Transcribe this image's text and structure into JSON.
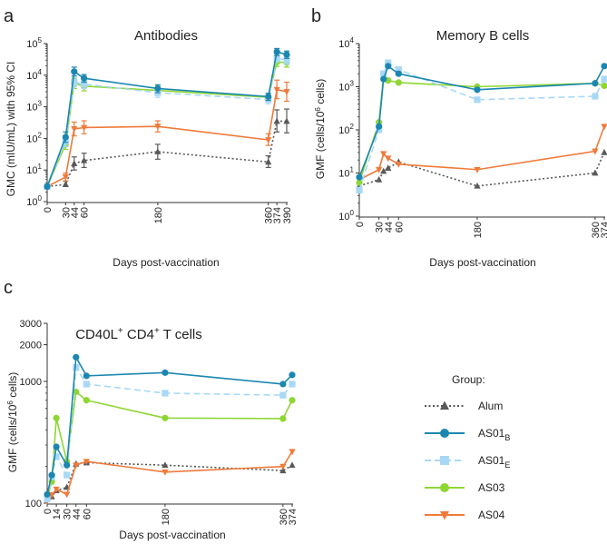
{
  "legend": {
    "title": "Group:",
    "entries": [
      {
        "key": "alum",
        "label": "Alum",
        "sub": ""
      },
      {
        "key": "as01b",
        "label": "AS01",
        "sub": "B"
      },
      {
        "key": "as01e",
        "label": "AS01",
        "sub": "E"
      },
      {
        "key": "as03",
        "label": "AS03",
        "sub": ""
      },
      {
        "key": "as04",
        "label": "AS04",
        "sub": ""
      }
    ]
  },
  "series_styles": {
    "alum": {
      "color": "#595959",
      "marker": "triangle-up",
      "dash": "dotted"
    },
    "as01b": {
      "color": "#1b87b0",
      "marker": "circle",
      "dash": "solid"
    },
    "as01e": {
      "color": "#a9d8f5",
      "marker": "square",
      "dash": "dashed"
    },
    "as03": {
      "color": "#8ed634",
      "marker": "circle",
      "dash": "solid"
    },
    "as04": {
      "color": "#f07a3a",
      "marker": "triangle-down",
      "dash": "solid"
    }
  },
  "chart_data": [
    {
      "panel": "a",
      "type": "line",
      "title": "Antibodies",
      "xlabel": "Days post-vaccination",
      "ylabel": "GMC (mIU/mL) with 95% CI",
      "yscale": "log",
      "ylim": [
        1,
        100000
      ],
      "yticks": [
        {
          "v": 1,
          "b": "10",
          "e": "0"
        },
        {
          "v": 10,
          "b": "10",
          "e": "1"
        },
        {
          "v": 100,
          "b": "10",
          "e": "2"
        },
        {
          "v": 1000,
          "b": "10",
          "e": "3"
        },
        {
          "v": 10000,
          "b": "10",
          "e": "4"
        },
        {
          "v": 100000,
          "b": "10",
          "e": "5"
        }
      ],
      "xticks": [
        0,
        30,
        44,
        60,
        180,
        360,
        374,
        390
      ],
      "series": [
        {
          "key": "alum",
          "x": [
            0,
            30,
            44,
            60,
            180,
            360,
            374,
            390
          ],
          "values": [
            3,
            3.5,
            16,
            20,
            38,
            18,
            350,
            350
          ],
          "lower": [
            2.7,
            3,
            10,
            12,
            22,
            12,
            160,
            150
          ],
          "upper": [
            3.4,
            4.5,
            26,
            34,
            65,
            28,
            800,
            850
          ]
        },
        {
          "key": "as01b",
          "x": [
            0,
            30,
            44,
            60,
            180,
            360,
            374,
            390
          ],
          "values": [
            3,
            110,
            13000,
            8000,
            3800,
            2100,
            55000,
            45000
          ],
          "lower": [
            2.7,
            75,
            9500,
            6000,
            2800,
            1600,
            42000,
            34000
          ],
          "upper": [
            3.4,
            160,
            18000,
            10500,
            5000,
            2700,
            70000,
            58000
          ]
        },
        {
          "key": "as01e",
          "x": [
            0,
            30,
            44,
            60,
            180,
            360,
            374,
            390
          ],
          "values": [
            3,
            80,
            6000,
            5200,
            2800,
            1700,
            35000,
            30000
          ],
          "lower": [
            2.7,
            55,
            4300,
            3800,
            2000,
            1250,
            26000,
            22000
          ],
          "upper": [
            3.4,
            110,
            8500,
            7000,
            3800,
            2300,
            47000,
            40000
          ]
        },
        {
          "key": "as03",
          "x": [
            0,
            30,
            44,
            60,
            180,
            360,
            374,
            390
          ],
          "values": [
            3,
            65,
            5500,
            4500,
            3300,
            2000,
            26000,
            25000
          ],
          "lower": [
            2.7,
            45,
            3800,
            3200,
            2400,
            1500,
            19000,
            18000
          ],
          "upper": [
            3.4,
            95,
            8000,
            6200,
            4500,
            2700,
            36000,
            34000
          ]
        },
        {
          "key": "as04",
          "x": [
            0,
            30,
            44,
            60,
            180,
            360,
            374,
            390
          ],
          "values": [
            3,
            6,
            200,
            220,
            240,
            90,
            3500,
            3000
          ],
          "lower": [
            2.7,
            4.5,
            120,
            140,
            160,
            60,
            1800,
            1500
          ],
          "upper": [
            3.4,
            8,
            330,
            360,
            360,
            140,
            7000,
            6000
          ]
        }
      ]
    },
    {
      "panel": "b",
      "type": "line",
      "title": "Memory B cells",
      "xlabel": "Days post-vaccination",
      "ylabel": "GMF (cells/10^6 cells)",
      "ylabel_parts": {
        "pre": "GMF (cells/10",
        "sup": "6",
        "post": " cells)"
      },
      "yscale": "log",
      "ylim": [
        1,
        10000
      ],
      "yticks": [
        {
          "v": 1,
          "b": "10",
          "e": "0"
        },
        {
          "v": 10,
          "b": "10",
          "e": "1"
        },
        {
          "v": 100,
          "b": "10",
          "e": "2"
        },
        {
          "v": 1000,
          "b": "10",
          "e": "3"
        },
        {
          "v": 10000,
          "b": "10",
          "e": "4"
        }
      ],
      "xticks": [
        0,
        30,
        44,
        60,
        180,
        360,
        374
      ],
      "series": [
        {
          "key": "alum",
          "x": [
            0,
            30,
            37,
            44,
            60,
            180,
            360,
            374
          ],
          "values": [
            5,
            7,
            11,
            13,
            18,
            5,
            10,
            30
          ]
        },
        {
          "key": "as01b",
          "x": [
            0,
            30,
            37,
            44,
            60,
            180,
            360,
            374
          ],
          "values": [
            8,
            120,
            1500,
            3000,
            2000,
            850,
            1200,
            3000
          ]
        },
        {
          "key": "as01e",
          "x": [
            0,
            30,
            37,
            44,
            60,
            180,
            360,
            374
          ],
          "values": [
            4,
            100,
            2000,
            3600,
            2500,
            500,
            600,
            1500
          ]
        },
        {
          "key": "as03",
          "x": [
            0,
            30,
            37,
            44,
            60,
            180,
            360,
            374
          ],
          "values": [
            6,
            150,
            1900,
            1400,
            1250,
            1000,
            1200,
            1050
          ]
        },
        {
          "key": "as04",
          "x": [
            0,
            30,
            37,
            44,
            60,
            180,
            360,
            374
          ],
          "values": [
            7,
            12,
            28,
            22,
            16,
            12,
            32,
            120
          ]
        }
      ]
    },
    {
      "panel": "c",
      "type": "line",
      "title": "CD40L+ CD4+ T cells",
      "title_parts": {
        "a": "CD40L",
        "s1": "+",
        "b": " CD4",
        "s2": "+",
        "c": " T cells"
      },
      "xlabel": "Days post-vaccination",
      "ylabel": "GMF (cells/10^6 cells)",
      "ylabel_parts": {
        "pre": "GMF (cells/10",
        "sup": "6",
        "post": " cells)"
      },
      "yscale": "log",
      "ylim": [
        100,
        3000
      ],
      "yticks": [
        {
          "v": 100,
          "b": "100",
          "e": ""
        },
        {
          "v": 1000,
          "b": "1000",
          "e": ""
        },
        {
          "v": 2000,
          "b": "2000",
          "e": ""
        },
        {
          "v": 3000,
          "b": "3000",
          "e": ""
        }
      ],
      "xticks": [
        0,
        14,
        30,
        44,
        60,
        180,
        360,
        374
      ],
      "series": [
        {
          "key": "alum",
          "x": [
            0,
            7,
            14,
            30,
            44,
            60,
            180,
            360,
            374
          ],
          "values": [
            107,
            113,
            127,
            135,
            210,
            215,
            205,
            185,
            205
          ]
        },
        {
          "key": "as01b",
          "x": [
            0,
            7,
            14,
            30,
            44,
            60,
            180,
            360,
            374
          ],
          "values": [
            118,
            170,
            290,
            205,
            1580,
            1110,
            1180,
            950,
            1130
          ]
        },
        {
          "key": "as01e",
          "x": [
            0,
            7,
            14,
            30,
            44,
            60,
            180,
            360,
            374
          ],
          "values": [
            108,
            165,
            240,
            170,
            1300,
            950,
            800,
            770,
            950
          ]
        },
        {
          "key": "as03",
          "x": [
            0,
            7,
            14,
            30,
            44,
            60,
            180,
            360,
            374
          ],
          "values": [
            110,
            150,
            500,
            220,
            820,
            700,
            500,
            495,
            700
          ]
        },
        {
          "key": "as04",
          "x": [
            0,
            7,
            14,
            30,
            44,
            60,
            180,
            360,
            374
          ],
          "values": [
            104,
            117,
            130,
            118,
            205,
            220,
            180,
            200,
            265
          ]
        }
      ]
    }
  ]
}
